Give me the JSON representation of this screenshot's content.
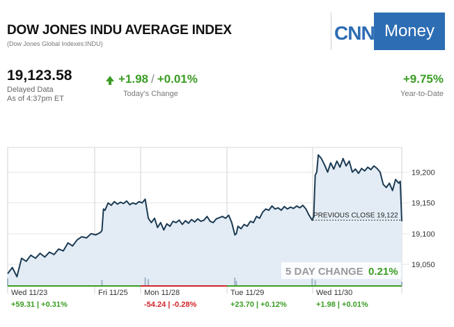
{
  "header": {
    "title": "DOW JONES INDU AVERAGE INDEX",
    "subtitle": "(Dow Jones Global Indexes:INDU)",
    "logo_left": "CNN",
    "logo_right": "Money"
  },
  "quote": {
    "price": "19,123.58",
    "delayed_line1": "Delayed Data",
    "delayed_line2": "As of 4:37pm ET",
    "change_points": "+1.98",
    "change_percent": "+0.01%",
    "change_label": "Today’s Change",
    "ytd_value": "+9.75%",
    "ytd_label": "Year-to-Date"
  },
  "colors": {
    "up": "#3a9d23",
    "down": "#d0242b",
    "line": "#1b3a52",
    "area": "#e3ecf5"
  },
  "chart_data": {
    "type": "area",
    "ylim": [
      19015,
      19240
    ],
    "y_ticks": [
      "19,200",
      "19,150",
      "19,100",
      "19,050"
    ],
    "y_tick_values": [
      19200,
      19150,
      19100,
      19050
    ],
    "previous_close_label": "PREVIOUS CLOSE 19,122",
    "previous_close": 19122,
    "five_day_label": "5 DAY CHANGE",
    "five_day_value": "0.21%",
    "days": [
      {
        "label": "Wed 11/23",
        "change": "+59.31 | +0.31%",
        "dir": "up"
      },
      {
        "label": "Fri 11/25",
        "change": "",
        "dir": "up"
      },
      {
        "label": "Mon 11/28",
        "change": "-54.24 | -0.28%",
        "dir": "down"
      },
      {
        "label": "Tue 11/29",
        "change": "+23.70 | +0.12%",
        "dir": "up"
      },
      {
        "label": "Wed 11/30",
        "change": "+1.98 | +0.01%",
        "dir": "up"
      }
    ],
    "series": [
      {
        "points": [
          [
            0,
            19035
          ],
          [
            1.5,
            19045
          ],
          [
            3,
            19030
          ],
          [
            4.5,
            19060
          ],
          [
            6,
            19055
          ],
          [
            7.5,
            19065
          ],
          [
            9,
            19060
          ],
          [
            10.5,
            19068
          ],
          [
            12,
            19062
          ],
          [
            13.5,
            19070
          ],
          [
            15,
            19066
          ],
          [
            16.5,
            19075
          ],
          [
            18,
            19072
          ],
          [
            19.5,
            19085
          ],
          [
            21,
            19080
          ],
          [
            22.5,
            19090
          ],
          [
            24,
            19095
          ],
          [
            25.5,
            19093
          ],
          [
            27,
            19100
          ],
          [
            28.5,
            19098
          ],
          [
            30,
            19102
          ],
          [
            30.5,
            19105
          ],
          [
            31,
            19140
          ],
          [
            31.5,
            19138
          ],
          [
            32.5,
            19150
          ],
          [
            33.5,
            19146
          ],
          [
            34.5,
            19152
          ],
          [
            35.5,
            19148
          ],
          [
            36.5,
            19151
          ],
          [
            37.5,
            19149
          ],
          [
            38.5,
            19153
          ],
          [
            39.5,
            19147
          ],
          [
            40.5,
            19150
          ],
          [
            41.5,
            19148
          ],
          [
            42.5,
            19152
          ],
          [
            43.5,
            19150
          ],
          [
            44.5,
            19156
          ],
          [
            45,
            19140
          ],
          [
            45.5,
            19125
          ],
          [
            46.5,
            19118
          ],
          [
            47.5,
            19125
          ],
          [
            48.5,
            19110
          ],
          [
            49.5,
            19118
          ],
          [
            50.5,
            19106
          ],
          [
            51.5,
            19116
          ],
          [
            52.5,
            19112
          ],
          [
            53.5,
            19120
          ],
          [
            54.5,
            19118
          ],
          [
            55.5,
            19122
          ],
          [
            56.5,
            19115
          ],
          [
            57.5,
            19121
          ],
          [
            58.5,
            19117
          ],
          [
            59.5,
            19123
          ],
          [
            60.5,
            19119
          ],
          [
            61.5,
            19124
          ],
          [
            62.5,
            19120
          ],
          [
            63.5,
            19122
          ],
          [
            64.5,
            19128
          ],
          [
            65.5,
            19120
          ],
          [
            66.5,
            19118
          ],
          [
            67.5,
            19124
          ],
          [
            68.5,
            19126
          ],
          [
            69.5,
            19128
          ],
          [
            70.5,
            19125
          ],
          [
            71.5,
            19130
          ],
          [
            72.5,
            19118
          ],
          [
            73.5,
            19098
          ],
          [
            74,
            19100
          ],
          [
            74.5,
            19112
          ],
          [
            75.5,
            19108
          ],
          [
            76.5,
            19115
          ],
          [
            77.5,
            19112
          ],
          [
            78.5,
            19120
          ],
          [
            79.5,
            19118
          ],
          [
            80.5,
            19128
          ],
          [
            81.5,
            19125
          ],
          [
            82.5,
            19135
          ],
          [
            83.5,
            19140
          ],
          [
            84.5,
            19138
          ],
          [
            85.5,
            19145
          ],
          [
            86.5,
            19140
          ],
          [
            87.5,
            19142
          ],
          [
            88.5,
            19138
          ],
          [
            89.5,
            19144
          ],
          [
            90.5,
            19140
          ],
          [
            91.5,
            19143
          ],
          [
            92.5,
            19141
          ],
          [
            93.5,
            19145
          ],
          [
            94.5,
            19142
          ],
          [
            95.5,
            19146
          ],
          [
            96.5,
            19140
          ],
          [
            97.5,
            19130
          ],
          [
            98.5,
            19122
          ],
          [
            99,
            19128
          ],
          [
            99.5,
            19195
          ],
          [
            100,
            19200
          ],
          [
            100.5,
            19228
          ],
          [
            101.5,
            19222
          ],
          [
            102.5,
            19212
          ],
          [
            103.5,
            19200
          ],
          [
            104.5,
            19215
          ],
          [
            105.5,
            19205
          ],
          [
            106.5,
            19218
          ],
          [
            107.5,
            19208
          ],
          [
            108.5,
            19222
          ],
          [
            109.5,
            19210
          ],
          [
            110.5,
            19218
          ],
          [
            111.5,
            19200
          ],
          [
            112.5,
            19205
          ],
          [
            113.5,
            19198
          ],
          [
            114.5,
            19206
          ],
          [
            115.5,
            19202
          ],
          [
            116.5,
            19208
          ],
          [
            117.5,
            19204
          ],
          [
            118.5,
            19210
          ],
          [
            119.5,
            19206
          ],
          [
            120.5,
            19200
          ],
          [
            121.5,
            19180
          ],
          [
            122.5,
            19175
          ],
          [
            123.5,
            19182
          ],
          [
            124.5,
            19170
          ],
          [
            125.5,
            19188
          ],
          [
            126.5,
            19182
          ],
          [
            127,
            19185
          ],
          [
            127.5,
            19120
          ]
        ]
      }
    ],
    "x_domain": [
      0,
      127.5
    ],
    "volume": [
      {
        "x": 0,
        "v": 0.9
      },
      {
        "x": 30.5,
        "v": 0.7
      },
      {
        "x": 44.5,
        "v": 1
      },
      {
        "x": 45.5,
        "v": 0.8
      },
      {
        "x": 73.5,
        "v": 1
      },
      {
        "x": 74,
        "v": 0.6
      },
      {
        "x": 98.5,
        "v": 0.9
      },
      {
        "x": 99.5,
        "v": 0.7
      },
      {
        "x": 127.5,
        "v": 0.5
      }
    ]
  }
}
